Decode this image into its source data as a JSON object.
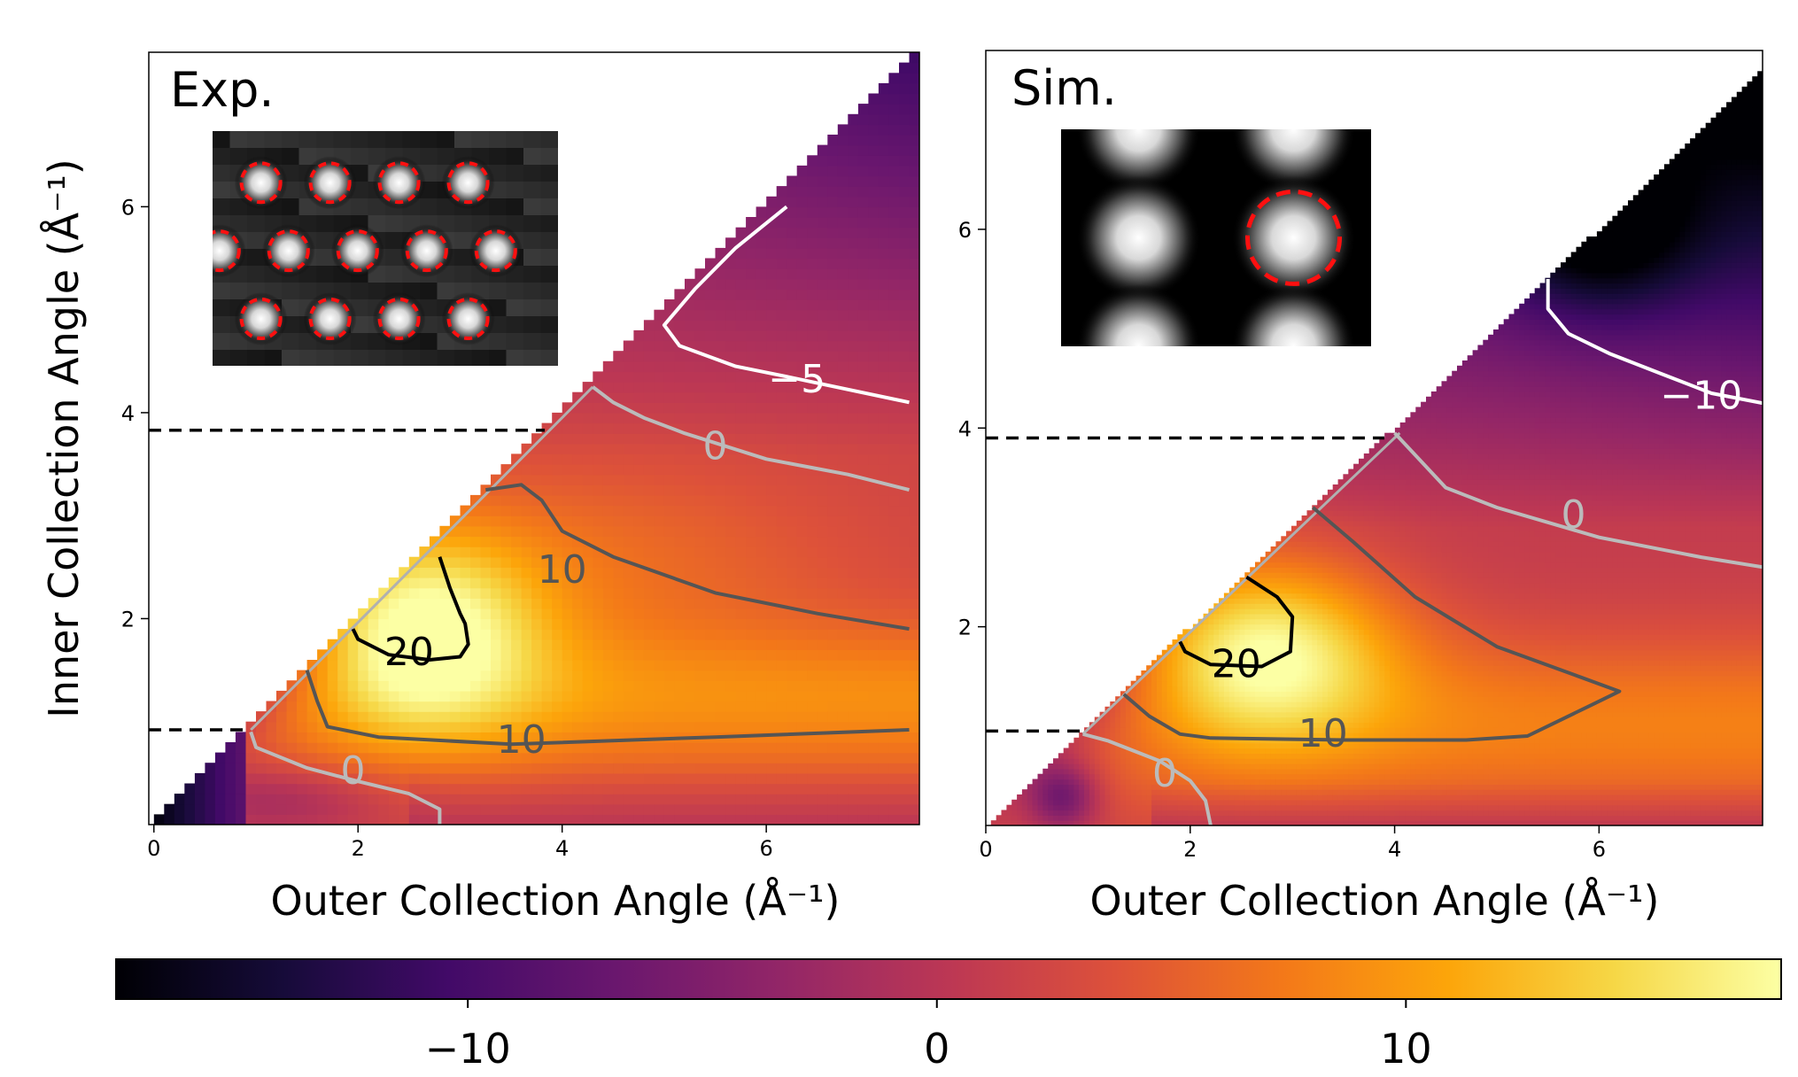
{
  "chart_data": {
    "type": "heatmap",
    "shared_colorbar": {
      "colormap": "inferno",
      "vmin": -17.5,
      "vmax": 18,
      "ticks": [
        {
          "value": -10,
          "label": "−10"
        },
        {
          "value": 0,
          "label": "0"
        },
        {
          "value": 10,
          "label": "10"
        }
      ]
    },
    "panels": [
      {
        "id": "exp",
        "label": "Exp.",
        "xlabel": "Outer Collection Angle (Å⁻¹)",
        "ylabel": "Inner Collection Angle (Å⁻¹)",
        "xlim": [
          -0.05,
          7.5
        ],
        "ylim": [
          0,
          7.5
        ],
        "xticks": [
          {
            "value": 0,
            "label": "0"
          },
          {
            "value": 2,
            "label": "2"
          },
          {
            "value": 4,
            "label": "4"
          },
          {
            "value": 6,
            "label": "6"
          }
        ],
        "yticks": [
          {
            "value": 2,
            "label": "2"
          },
          {
            "value": 4,
            "label": "4"
          },
          {
            "value": 6,
            "label": "6"
          }
        ],
        "pixelated": true,
        "dashed_lines_inner_angle": [
          0.92,
          3.83
        ],
        "contours": [
          {
            "level": 20,
            "label": "20",
            "color": "#000000",
            "label_at": [
              2.5,
              1.65
            ],
            "points": [
              [
                2.8,
                2.6
              ],
              [
                2.9,
                2.3
              ],
              [
                3.0,
                2.05
              ],
              [
                3.05,
                1.95
              ],
              [
                3.08,
                1.75
              ],
              [
                3.0,
                1.63
              ],
              [
                2.7,
                1.6
              ],
              [
                2.3,
                1.65
              ],
              [
                2.0,
                1.8
              ],
              [
                1.95,
                1.9
              ]
            ]
          },
          {
            "level": 10,
            "label": "10",
            "color": "#555555",
            "label_at": [
              4.0,
              2.45
            ],
            "points": [
              [
                3.25,
                3.25
              ],
              [
                3.6,
                3.3
              ],
              [
                3.8,
                3.15
              ],
              [
                4.0,
                2.85
              ],
              [
                4.5,
                2.6
              ],
              [
                5.5,
                2.25
              ],
              [
                6.5,
                2.05
              ],
              [
                7.4,
                1.9
              ]
            ]
          },
          {
            "level": 10,
            "label": "10",
            "color": "#555555",
            "label_at": [
              3.6,
              0.8
            ],
            "points": [
              [
                1.5,
                1.5
              ],
              [
                1.6,
                1.2
              ],
              [
                1.7,
                0.95
              ],
              [
                2.2,
                0.85
              ],
              [
                3.5,
                0.78
              ],
              [
                5.5,
                0.85
              ],
              [
                7.4,
                0.92
              ]
            ]
          },
          {
            "level": 0,
            "label": "0",
            "color": "#bbbbbb",
            "label_at": [
              5.5,
              3.65
            ],
            "points": [
              [
                4.3,
                4.25
              ],
              [
                4.5,
                4.1
              ],
              [
                4.8,
                3.95
              ],
              [
                5.2,
                3.8
              ],
              [
                6.0,
                3.55
              ],
              [
                6.8,
                3.4
              ],
              [
                7.4,
                3.25
              ]
            ]
          },
          {
            "level": 0,
            "label": "0",
            "color": "#bbbbbb",
            "label_at": [
              1.95,
              0.5
            ],
            "points": [
              [
                0.95,
                0.9
              ],
              [
                1.0,
                0.75
              ],
              [
                1.5,
                0.55
              ],
              [
                2.0,
                0.42
              ],
              [
                2.5,
                0.3
              ],
              [
                2.8,
                0.15
              ],
              [
                2.8,
                0.0
              ]
            ]
          },
          {
            "level": -5,
            "label": "−5",
            "color": "#ffffff",
            "label_at": [
              6.3,
              4.3
            ],
            "points": [
              [
                6.2,
                6.0
              ],
              [
                5.7,
                5.6
              ],
              [
                5.3,
                5.2
              ],
              [
                5.0,
                4.85
              ],
              [
                5.15,
                4.65
              ],
              [
                5.7,
                4.45
              ],
              [
                6.2,
                4.35
              ],
              [
                7.4,
                4.1
              ]
            ]
          }
        ],
        "inset": {
          "description_hidden": true,
          "rows": [
            {
              "count": 4,
              "offset": 0.12
            },
            {
              "count": 5,
              "offset": 0.0
            },
            {
              "count": 4,
              "offset": 0.12
            }
          ]
        }
      },
      {
        "id": "sim",
        "label": "Sim.",
        "xlabel": "Outer Collection Angle (Å⁻¹)",
        "ylabel": "",
        "xlim": [
          0,
          7.6
        ],
        "ylim": [
          0,
          7.8
        ],
        "xticks": [
          {
            "value": 0,
            "label": "0"
          },
          {
            "value": 2,
            "label": "2"
          },
          {
            "value": 4,
            "label": "4"
          },
          {
            "value": 6,
            "label": "6"
          }
        ],
        "yticks": [
          {
            "value": 2,
            "label": "2"
          },
          {
            "value": 4,
            "label": "4"
          },
          {
            "value": 6,
            "label": "6"
          }
        ],
        "pixelated": false,
        "dashed_lines_inner_angle": [
          0.95,
          3.9
        ],
        "contours": [
          {
            "level": 20,
            "label": "20",
            "color": "#000000",
            "label_at": [
              2.45,
              1.6
            ],
            "points": [
              [
                2.55,
                2.5
              ],
              [
                2.85,
                2.3
              ],
              [
                3.0,
                2.1
              ],
              [
                2.98,
                1.75
              ],
              [
                2.7,
                1.6
              ],
              [
                2.2,
                1.62
              ],
              [
                1.95,
                1.75
              ],
              [
                1.9,
                1.85
              ]
            ]
          },
          {
            "level": 10,
            "label": "10",
            "color": "#555555",
            "label_at": [
              3.3,
              0.9
            ],
            "points": [
              [
                3.2,
                3.2
              ],
              [
                3.6,
                2.85
              ],
              [
                4.2,
                2.3
              ],
              [
                5.0,
                1.8
              ],
              [
                5.8,
                1.5
              ],
              [
                6.2,
                1.35
              ],
              [
                5.9,
                1.2
              ],
              [
                5.5,
                1.0
              ],
              [
                5.3,
                0.9
              ],
              [
                4.7,
                0.86
              ],
              [
                3.5,
                0.86
              ],
              [
                2.2,
                0.88
              ],
              [
                1.9,
                0.92
              ],
              [
                1.6,
                1.1
              ],
              [
                1.35,
                1.32
              ]
            ]
          },
          {
            "level": 0,
            "label": "0",
            "color": "#bbbbbb",
            "label_at": [
              5.75,
              3.1
            ],
            "points": [
              [
                4.0,
                3.95
              ],
              [
                4.5,
                3.4
              ],
              [
                5.0,
                3.2
              ],
              [
                6.0,
                2.9
              ],
              [
                7.0,
                2.7
              ],
              [
                7.6,
                2.6
              ]
            ]
          },
          {
            "level": 0,
            "label": "0",
            "color": "#bbbbbb",
            "label_at": [
              1.75,
              0.5
            ],
            "points": [
              [
                0.95,
                0.92
              ],
              [
                1.2,
                0.85
              ],
              [
                1.7,
                0.65
              ],
              [
                2.0,
                0.45
              ],
              [
                2.15,
                0.25
              ],
              [
                2.2,
                0.0
              ]
            ]
          },
          {
            "level": -10,
            "label": "−10",
            "color": "#ffffff",
            "label_at": [
              7.0,
              4.3
            ],
            "points": [
              [
                5.5,
                5.5
              ],
              [
                5.5,
                5.2
              ],
              [
                5.7,
                4.95
              ],
              [
                6.1,
                4.75
              ],
              [
                6.6,
                4.55
              ],
              [
                7.1,
                4.35
              ],
              [
                7.6,
                4.25
              ]
            ]
          }
        ],
        "inset": {
          "description_hidden": true,
          "spots": [
            [
              0.25,
              0.0
            ],
            [
              0.75,
              0.0
            ],
            [
              0.25,
              0.5
            ],
            [
              0.75,
              0.5
            ],
            [
              0.25,
              1.0
            ],
            [
              0.75,
              1.0
            ]
          ],
          "highlight_index": 3
        }
      }
    ]
  }
}
